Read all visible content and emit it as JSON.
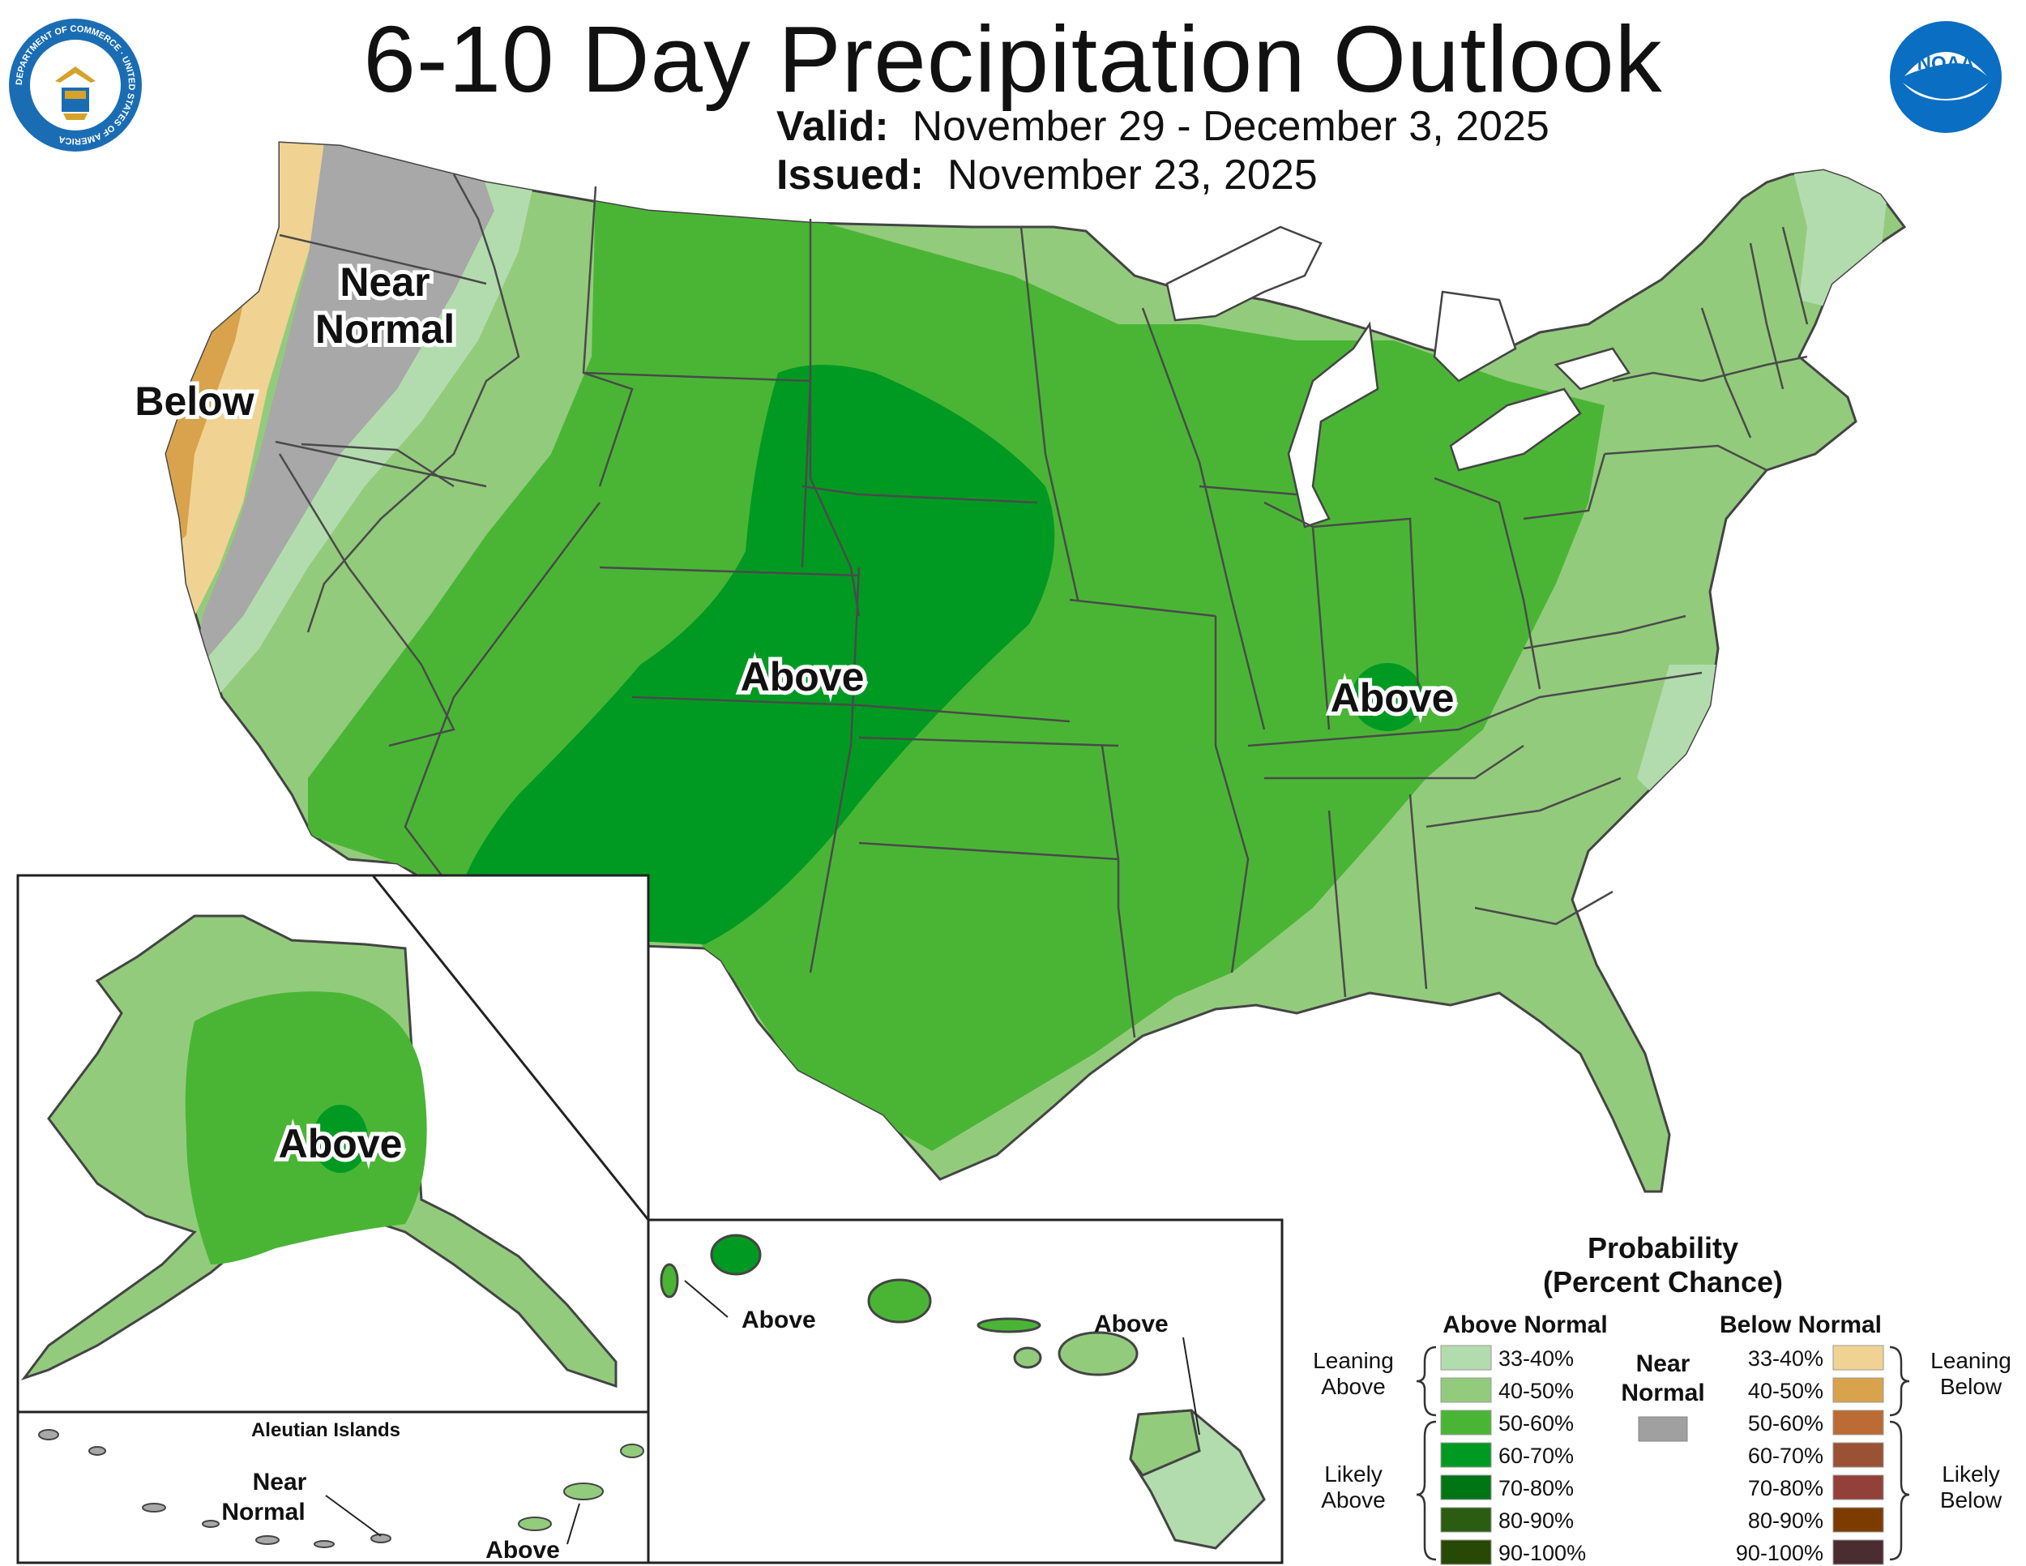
{
  "title": "6-10 Day Precipitation Outlook",
  "valid": {
    "label": "Valid:",
    "value": "November 29 - December 3, 2025"
  },
  "issued": {
    "label": "Issued:",
    "value": "November 23, 2025"
  },
  "logos": {
    "commerce_seal": {
      "icon": "department-of-commerce-seal",
      "text": "DEPARTMENT OF COMMERCE · UNITED STATES OF AMERICA"
    },
    "noaa": {
      "icon": "noaa-logo",
      "text": "NOAA"
    }
  },
  "map_labels": {
    "near_normal": [
      "Near",
      "Normal"
    ],
    "below": "Below",
    "above_plains": "Above",
    "above_ohio": "Above",
    "above_alaska": "Above",
    "above_hawaii_kauai": "Above",
    "above_hawaii_big": "Above",
    "aleutian_title": "Aleutian Islands",
    "aleutian_near": [
      "Near",
      "Normal"
    ],
    "aleutian_above": "Above"
  },
  "legend": {
    "title": [
      "Probability",
      "(Percent Chance)"
    ],
    "above_header": "Above Normal",
    "below_header": "Below Normal",
    "near_header": [
      "Near",
      "Normal"
    ],
    "near_color": "#a0a0a0",
    "leaning_above": [
      "Leaning",
      "Above"
    ],
    "likely_above": [
      "Likely",
      "Above"
    ],
    "leaning_below": [
      "Leaning",
      "Below"
    ],
    "likely_below": [
      "Likely",
      "Below"
    ],
    "above_bins": [
      {
        "range": "33-40%",
        "color": "#b3dcae"
      },
      {
        "range": "40-50%",
        "color": "#93cb7c"
      },
      {
        "range": "50-60%",
        "color": "#4ab535"
      },
      {
        "range": "60-70%",
        "color": "#009a22"
      },
      {
        "range": "70-80%",
        "color": "#007514"
      },
      {
        "range": "80-90%",
        "color": "#2a5c12"
      },
      {
        "range": "90-100%",
        "color": "#284905"
      }
    ],
    "below_bins": [
      {
        "range": "33-40%",
        "color": "#f0d393"
      },
      {
        "range": "40-50%",
        "color": "#d8a34c"
      },
      {
        "range": "50-60%",
        "color": "#bb6b33"
      },
      {
        "range": "60-70%",
        "color": "#9b5133"
      },
      {
        "range": "70-80%",
        "color": "#93403a"
      },
      {
        "range": "80-90%",
        "color": "#7c3c00"
      },
      {
        "range": "90-100%",
        "color": "#4a2d30"
      }
    ]
  },
  "colors": {
    "near_normal": "#a8a8a8",
    "border": "#4a4a4a",
    "water": "#ffffff"
  }
}
